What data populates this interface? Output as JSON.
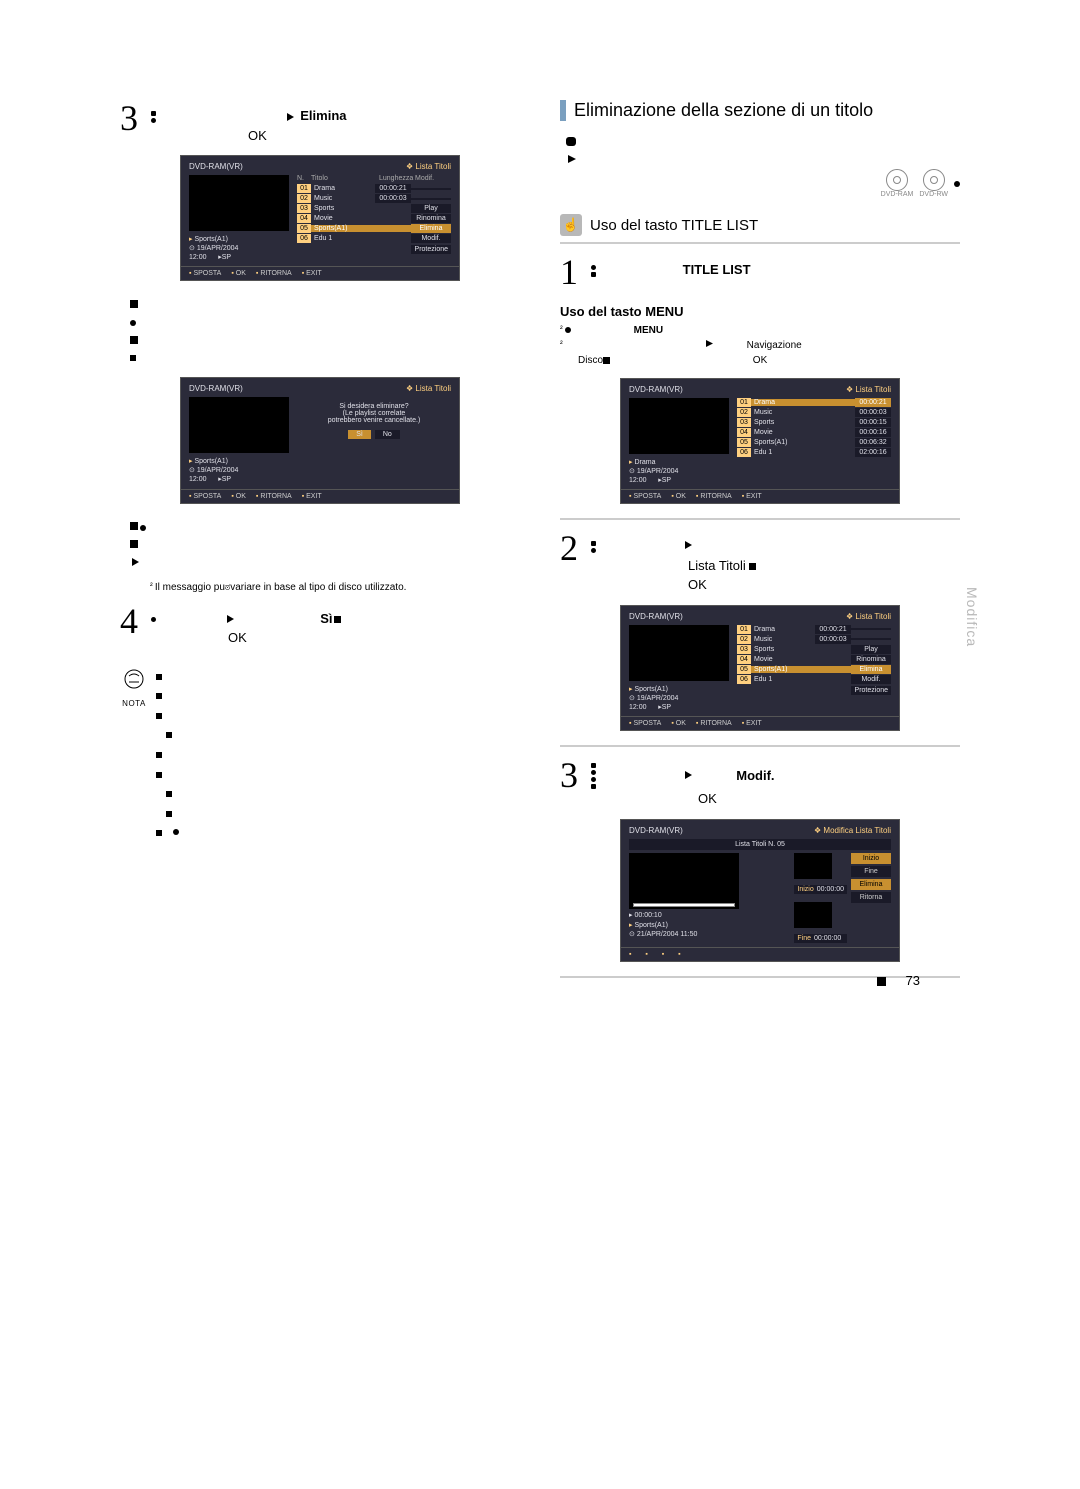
{
  "page_number": "73",
  "side_tab": "Modifica",
  "note_label": "NOTA",
  "left": {
    "step3": {
      "num": "3",
      "action": "Elimina",
      "text_prefix": "OK"
    },
    "screenA": {
      "disc": "DVD-RAM(VR)",
      "header_right": "Lista Titoli",
      "preview_title": "Sports(A1)",
      "preview_date": "19/APR/2004",
      "preview_time": "12:00",
      "preview_sp": "SP",
      "list_head": {
        "n": "N.",
        "t": "Titolo",
        "l": "Lunghezza",
        "m": "Modif."
      },
      "rows": [
        {
          "n": "01",
          "t": "Drama",
          "l": "00:00:21",
          "m": ""
        },
        {
          "n": "02",
          "t": "Music",
          "l": "00:00:03",
          "m": ""
        },
        {
          "n": "03",
          "t": "Sports",
          "l": "",
          "m": "Play"
        },
        {
          "n": "04",
          "t": "Movie",
          "l": "",
          "m": "Rinomina"
        },
        {
          "n": "05",
          "t": "Sports(A1)",
          "l": "",
          "m": "Elimina",
          "sel": true
        },
        {
          "n": "06",
          "t": "Edu 1",
          "l": "",
          "m": "Modif."
        }
      ],
      "menu_extra": "Protezione",
      "foot": [
        "SPOSTA",
        "OK",
        "RITORNA",
        "EXIT"
      ]
    },
    "mid_bullets": {},
    "screenB": {
      "disc": "DVD-RAM(VR)",
      "header_right": "Lista Titoli",
      "dialog1": "Si desidera eliminare?",
      "dialog2": "(Le playlist correlate",
      "dialog3": "potrebbero venire cancellate.)",
      "btn_yes": "Sì",
      "btn_no": "No",
      "preview_title": "Sports(A1)",
      "preview_date": "19/APR/2004",
      "preview_time": "12:00",
      "preview_sp": "SP",
      "foot": [
        "SPOSTA",
        "OK",
        "RITORNA",
        "EXIT"
      ]
    },
    "footnote": "Il messaggio puಠvariare in base al tipo di disco utilizzato.",
    "step4": {
      "num": "4",
      "action": "Sì",
      "text_prefix": "OK"
    },
    "notes": [
      "",
      "",
      "",
      "",
      "",
      "",
      "",
      "",
      ""
    ]
  },
  "right": {
    "title": "Eliminazione della sezione di un titolo",
    "discs": [
      "DVD-RAM",
      "DVD-RW"
    ],
    "sub_heading": "Uso del tasto TITLE LIST",
    "step1": {
      "num": "1",
      "action": "TITLE LIST"
    },
    "sub_sub": "Uso del tasto MENU",
    "menu_line1_action": "MENU",
    "menu_line2_word": "Navigazione",
    "menu_line2_disc": "Disco",
    "menu_line2_ok": "OK",
    "screenC": {
      "disc": "DVD-RAM(VR)",
      "header_right": "Lista Titoli",
      "preview_title": "Drama",
      "preview_date": "19/APR/2004",
      "preview_time": "12:00",
      "preview_sp": "SP",
      "rows": [
        {
          "n": "01",
          "t": "Drama",
          "l": "00:00:21",
          "sel": true
        },
        {
          "n": "02",
          "t": "Music",
          "l": "00:00:03"
        },
        {
          "n": "03",
          "t": "Sports",
          "l": "00:00:15"
        },
        {
          "n": "04",
          "t": "Movie",
          "l": "00:00:16"
        },
        {
          "n": "05",
          "t": "Sports(A1)",
          "l": "00:06:32"
        },
        {
          "n": "06",
          "t": "Edu 1",
          "l": "02:00:16"
        }
      ],
      "foot": [
        "SPOSTA",
        "OK",
        "RITORNA",
        "EXIT"
      ]
    },
    "step2": {
      "num": "2",
      "action": "Lista Titoli",
      "ok": "OK"
    },
    "screenD": {
      "disc": "DVD-RAM(VR)",
      "header_right": "Lista Titoli",
      "preview_title": "Sports(A1)",
      "preview_date": "19/APR/2004",
      "preview_time": "12:00",
      "preview_sp": "SP",
      "rows": [
        {
          "n": "01",
          "t": "Drama",
          "l": "00:00:21"
        },
        {
          "n": "02",
          "t": "Music",
          "l": "00:00:03"
        },
        {
          "n": "03",
          "t": "Sports",
          "m": "Play"
        },
        {
          "n": "04",
          "t": "Movie",
          "m": "Rinomina"
        },
        {
          "n": "05",
          "t": "Sports(A1)",
          "m": "Elimina",
          "sel": true
        },
        {
          "n": "06",
          "t": "Edu 1",
          "m": "Modif."
        }
      ],
      "menu_extra": "Protezione",
      "foot": [
        "SPOSTA",
        "OK",
        "RITORNA",
        "EXIT"
      ]
    },
    "step3r": {
      "num": "3",
      "action": "Modif.",
      "ok": "OK"
    },
    "screenE": {
      "disc": "DVD-RAM(VR)",
      "header_right": "Modifica Lista Titoli",
      "mod_title": "Lista Titoli N. 05",
      "btns": [
        "Inizio",
        "Fine",
        "Elimina",
        "Ritorna"
      ],
      "inizio_lbl": "Inizio",
      "inizio_t": "00:00:00",
      "fine_lbl": "Fine",
      "fine_t": "00:00:00",
      "bar_time": "00:00:10",
      "preview_title": "Sports(A1)",
      "preview_date": "21/APR/2004 11:50",
      "foot": [
        "",
        "",
        "",
        ""
      ]
    }
  }
}
